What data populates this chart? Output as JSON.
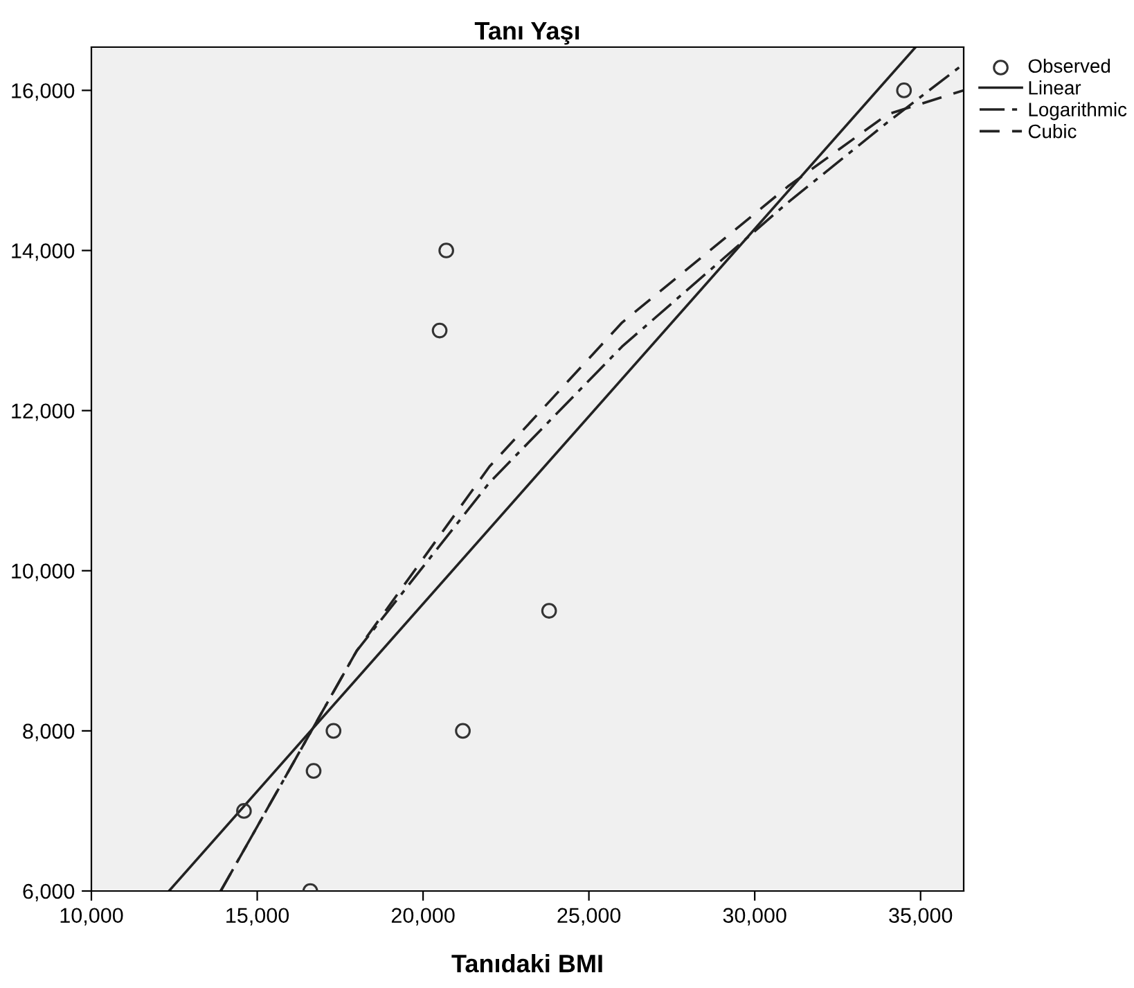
{
  "chart_data": {
    "type": "scatter",
    "title": "Tanı Yaşı",
    "xlabel": "Tanıdaki BMI",
    "xlim": [
      10000,
      36300
    ],
    "ylim": [
      6000,
      16540
    ],
    "xticks": [
      {
        "value": 10000,
        "label": "10,000"
      },
      {
        "value": 15000,
        "label": "15,000"
      },
      {
        "value": 20000,
        "label": "20,000"
      },
      {
        "value": 25000,
        "label": "25,000"
      },
      {
        "value": 30000,
        "label": "30,000"
      },
      {
        "value": 35000,
        "label": "35,000"
      }
    ],
    "yticks": [
      {
        "value": 6000,
        "label": "6,000"
      },
      {
        "value": 8000,
        "label": "8,000"
      },
      {
        "value": 10000,
        "label": "10,000"
      },
      {
        "value": 12000,
        "label": "12,000"
      },
      {
        "value": 14000,
        "label": "14,000"
      },
      {
        "value": 16000,
        "label": "16,000"
      }
    ],
    "grid": false,
    "legend": "top right",
    "series": [
      {
        "name": "Observed",
        "marker": "circle",
        "color": "#333333",
        "x": [
          14600,
          16600,
          16700,
          17300,
          20500,
          20700,
          21200,
          23800,
          34500
        ],
        "values": [
          7000,
          6000,
          7500,
          8000,
          13000,
          14000,
          8000,
          9500,
          16000
        ]
      },
      {
        "name": "Linear",
        "type": "line",
        "line_style": "solid",
        "color": "#222222",
        "x": [
          12340,
          34850
        ],
        "values": [
          6000,
          16540
        ]
      },
      {
        "name": "Logarithmic",
        "type": "line",
        "line_style": "dashdot",
        "color": "#222222",
        "x": [
          13900,
          18000,
          22000,
          26000,
          31000,
          34000,
          36300
        ],
        "values": [
          6000,
          9000,
          11100,
          12800,
          14600,
          15600,
          16330
        ]
      },
      {
        "name": "Cubic",
        "type": "line",
        "line_style": "dashed",
        "color": "#222222",
        "x": [
          13900,
          18000,
          22000,
          26000,
          31000,
          34000,
          36300
        ],
        "values": [
          6000,
          9000,
          11300,
          13100,
          14800,
          15700,
          16000
        ]
      }
    ]
  }
}
